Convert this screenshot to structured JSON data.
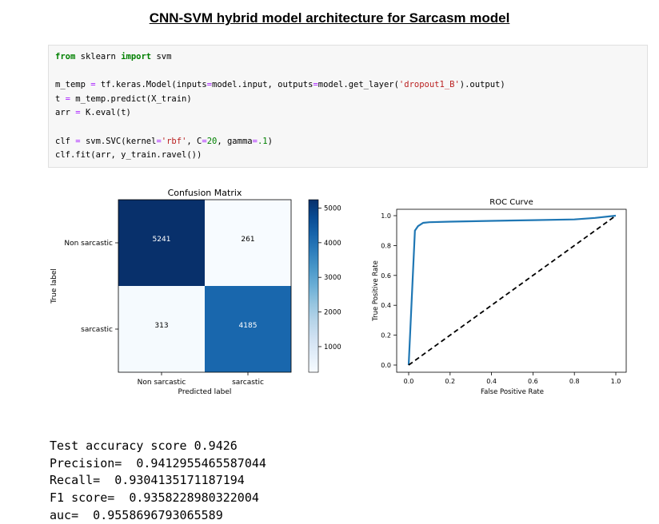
{
  "page_title": "CNN-SVM hybrid model architecture for Sarcasm model",
  "code": {
    "line1": {
      "kw1": "from",
      "mod": " sklearn ",
      "kw2": "import",
      "rest": " svm"
    },
    "line2": {
      "a": "m_temp ",
      "eq": "=",
      "b": " tf.keras.Model(inputs",
      "eq2": "=",
      "c": "model.input, outputs",
      "eq3": "=",
      "d": "model.get_layer(",
      "s": "'dropout1_B'",
      "e": ").output)"
    },
    "line3": {
      "a": "t ",
      "eq": "=",
      "b": " m_temp.predict(X_train)"
    },
    "line4": {
      "a": "arr ",
      "eq": "=",
      "b": " K.eval(t)"
    },
    "line5": {
      "a": "clf ",
      "eq": "=",
      "b": " svm.SVC(kernel",
      "eq2": "=",
      "s": "'rbf'",
      "c": ", C",
      "eq3": "=",
      "n1": "20",
      "d": ", gamma",
      "eq4": "=",
      "n2": ".1",
      "e": ")"
    },
    "line6": {
      "a": "clf.fit(arr, y_train.ravel())"
    }
  },
  "metrics": {
    "accuracy": "Test accuracy score 0.9426",
    "precision": "Precision=  0.941295546558 7044",
    "recall": "Recall=  0.9304135171187194",
    "f1": "F1 score=  0.9358228980322004",
    "auc": "auc=  0.9558696793065589"
  },
  "chart_data": [
    {
      "type": "heatmap",
      "title": "Confusion Matrix",
      "xlabel": "Predicted label",
      "ylabel": "True label",
      "x_categories": [
        "Non sarcastic",
        "sarcastic"
      ],
      "y_categories": [
        "Non sarcastic",
        "sarcastic"
      ],
      "values": [
        [
          5241,
          261
        ],
        [
          313,
          4185
        ]
      ],
      "colormap": "Blues",
      "colorbar_ticks": [
        1000,
        2000,
        3000,
        4000,
        5000
      ],
      "colorbar_range": [
        261,
        5241
      ],
      "colors": {
        "low": "#f7fbff",
        "high": "#08306b"
      }
    },
    {
      "type": "line",
      "title": "ROC Curve",
      "xlabel": "False Positive Rate",
      "ylabel": "True Positive Rate",
      "xlim": [
        0.0,
        1.0
      ],
      "ylim": [
        0.0,
        1.0
      ],
      "xticks": [
        "0.0",
        "0.2",
        "0.4",
        "0.6",
        "0.8",
        "1.0"
      ],
      "yticks": [
        "0.0",
        "0.2",
        "0.4",
        "0.6",
        "0.8",
        "1.0"
      ],
      "series": [
        {
          "line": "solid",
          "color": "#1f77b4",
          "x": [
            0.0,
            0.02,
            0.03,
            0.045,
            0.07,
            0.1,
            0.2,
            0.4,
            0.6,
            0.8,
            0.9,
            1.0
          ],
          "y": [
            0.0,
            0.6,
            0.9,
            0.93,
            0.952,
            0.956,
            0.96,
            0.965,
            0.97,
            0.975,
            0.985,
            1.0
          ]
        },
        {
          "line": "dashed",
          "color": "#000000",
          "x": [
            0.0,
            1.0
          ],
          "y": [
            0.0,
            1.0
          ]
        }
      ]
    }
  ]
}
